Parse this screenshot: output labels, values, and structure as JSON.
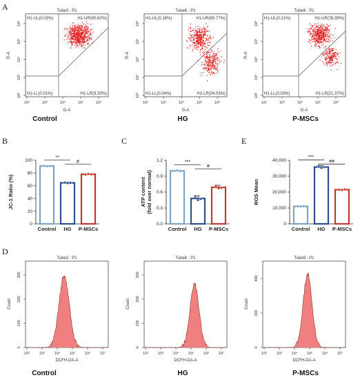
{
  "figure": {
    "panel_letters": [
      "A",
      "B",
      "C",
      "E",
      "D"
    ],
    "colors": {
      "control": "#7aa4c4",
      "hg": "#2e4f8e",
      "pmsc": "#c0392b",
      "flow_dot": "#e02020",
      "hist_fill": "#f08080",
      "gate_line": "#555555",
      "axis": "#333333"
    }
  },
  "flow": {
    "panels": [
      {
        "tube": "Tube3 : P1",
        "group": "Control",
        "ul": "H1-UL(0.03%)",
        "ur": "H1-UR(90.62%)",
        "ll": "H1-LL(0.01%)",
        "lr": "H1-LR(9.33%)"
      },
      {
        "tube": "Tube6 : P1",
        "group": "HG",
        "ul": "H1-UL(0.16%)",
        "ur": "H1-UR(65.77%)",
        "ll": "H1-LL(0.04%)",
        "lr": "H1-LR(34.03%)"
      },
      {
        "tube": "Tube9 : P1",
        "group": "P-MSCs",
        "ul": "H1-UL(0.21%)",
        "ur": "H1-UR(78.39%)",
        "ll": "H1-LL(0.03%)",
        "lr": "H1-LR(21.37%)"
      }
    ],
    "xlabel": "G-A",
    "ylabel": "R-A",
    "xticks": [
      "10²",
      "10³",
      "10⁴",
      "10⁵",
      "10⁶"
    ],
    "yticks": [
      "10²",
      "10³",
      "10⁴",
      "10⁵",
      "10⁶"
    ]
  },
  "hist": {
    "panels": [
      {
        "tube": "Tube3 : P1",
        "group": "Control",
        "yticks": [
          "0",
          "100",
          "200",
          "300"
        ]
      },
      {
        "tube": "Tube6 : P1",
        "group": "HG",
        "yticks": [
          "0",
          "100",
          "200",
          "300"
        ]
      },
      {
        "tube": "Tube9 : P1",
        "group": "P-MSCs",
        "yticks": [
          "0",
          "200",
          "400"
        ]
      }
    ],
    "xlabel": "DCFH-DA-A",
    "ylabel": "Count",
    "xticks": [
      "10²",
      "10³",
      "10⁴",
      "10⁵",
      "10⁶",
      "10⁷"
    ]
  },
  "chart_data": [
    {
      "type": "bar",
      "panel": "B",
      "categories": [
        "Control",
        "HG",
        "P-MSCs"
      ],
      "values": [
        91,
        64.5,
        78
      ],
      "ylabel": "JC-1 Ratio (%)",
      "ylim": [
        0,
        100
      ],
      "yticks": [
        "0",
        "20",
        "40",
        "60",
        "80",
        "100"
      ],
      "points": [
        [
          91.2,
          90.8,
          91
        ],
        [
          65,
          64,
          64.5
        ],
        [
          77.5,
          78.5,
          78
        ]
      ],
      "errors": [
        0.5,
        1.2,
        0.8
      ],
      "significance": [
        {
          "label": "**",
          "from": 0,
          "to": 1
        },
        {
          "label": "#",
          "from": 1,
          "to": 2
        }
      ]
    },
    {
      "type": "bar",
      "panel": "C",
      "categories": [
        "Control",
        "HG",
        "P-MSCs"
      ],
      "values": [
        1.0,
        0.48,
        0.69
      ],
      "ylabel": [
        "ATP content",
        "(fold over normal)"
      ],
      "ylim": [
        0,
        1.2
      ],
      "yticks": [
        "0.0",
        "0.3",
        "0.6",
        "0.9",
        "1.2"
      ],
      "points": [
        [
          1.0,
          1.01,
          0.995
        ],
        [
          0.52,
          0.45,
          0.47
        ],
        [
          0.72,
          0.67,
          0.68
        ]
      ],
      "errors": [
        0.01,
        0.05,
        0.04
      ],
      "significance": [
        {
          "label": "***",
          "from": 0,
          "to": 1
        },
        {
          "label": "#",
          "from": 1,
          "to": 2
        }
      ]
    },
    {
      "type": "bar",
      "panel": "E",
      "categories": [
        "Control",
        "HG",
        "P-MSCs"
      ],
      "values": [
        11000,
        35800,
        21500
      ],
      "ylabel": "ROS Mean",
      "ylim": [
        0,
        40000
      ],
      "yticks": [
        "0",
        "10,000",
        "20,000",
        "30,000",
        "40,000"
      ],
      "points": [
        [
          11000,
          10900,
          11100
        ],
        [
          36500,
          35200,
          35700
        ],
        [
          21500,
          21300,
          21700
        ]
      ],
      "errors": [
        200,
        900,
        300
      ],
      "significance": [
        {
          "label": "***",
          "from": 0,
          "to": 1
        },
        {
          "label": "##",
          "from": 1,
          "to": 2
        }
      ]
    }
  ]
}
